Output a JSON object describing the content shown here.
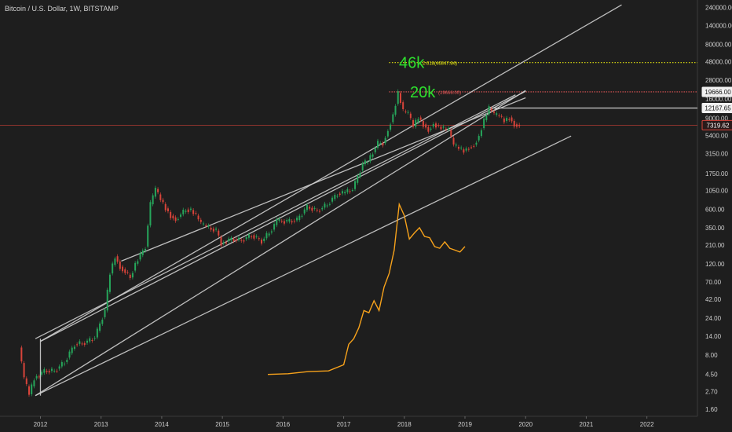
{
  "header": {
    "symbol_label": "Bitcoin / U.S. Dollar, 1W, BITSTAMP"
  },
  "colors": {
    "background": "#1e1e1e",
    "trendline": "#cfcfcf",
    "up_candle": "#26a65b",
    "down_candle": "#d9443a",
    "overlay_series": "#f7a21b",
    "current_price_line": "#d9443a",
    "level_46k": "#e5e510",
    "level_20k": "#e05555",
    "big_label": "#2ee02e",
    "axis_text": "#cfcfcf"
  },
  "chart_data": {
    "type": "line",
    "title": "Bitcoin / U.S. Dollar, 1W, BITSTAMP",
    "yscale": "log",
    "xlim": [
      "2011-05",
      "2022-11"
    ],
    "ylim": [
      1.3,
      300000
    ],
    "x_tick_labels": [
      "2012",
      "2013",
      "2014",
      "2015",
      "2016",
      "2017",
      "2018",
      "2019",
      "2020",
      "2021",
      "2022"
    ],
    "y_tick_labels": [
      "240000.00",
      "140000.00",
      "80000.00",
      "48000.00",
      "28000.00",
      "16000.00",
      "9000.00",
      "5400.00",
      "3150.00",
      "1750.00",
      "1050.00",
      "600.00",
      "350.00",
      "210.00",
      "120.00",
      "70.00",
      "42.00",
      "24.00",
      "14.00",
      "8.00",
      "4.50",
      "2.70",
      "1.60"
    ],
    "y_ticks": [
      240000,
      140000,
      80000,
      48000,
      28000,
      16000,
      9000,
      5400,
      3150,
      1750,
      1050,
      600,
      350,
      210,
      120,
      70,
      42,
      24,
      14,
      8,
      4.5,
      2.7,
      1.6
    ],
    "price_labels": [
      {
        "text": "19666.00",
        "value": 19666,
        "style": "white"
      },
      {
        "text": "12167.65",
        "value": 12167.65,
        "style": "white"
      },
      {
        "text": "7319.62",
        "value": 7319.62,
        "style": "red"
      }
    ],
    "horizontal_levels": [
      {
        "value": 46847.84,
        "style": "yellow-dotted"
      },
      {
        "value": 19666,
        "style": "red-dotted"
      },
      {
        "value": 12167.65,
        "style": "white"
      },
      {
        "value": 7319.62,
        "style": "red-thin"
      }
    ],
    "annotations": [
      {
        "big": "46k",
        "small": "2.618(46847.84)",
        "value": 46847.84
      },
      {
        "big": "20k",
        "small": "(19666.00)",
        "value": 19666
      }
    ],
    "price_series": [
      [
        "2011-09",
        10
      ],
      [
        "2011-10",
        4
      ],
      [
        "2011-11",
        2.5
      ],
      [
        "2011-12",
        4
      ],
      [
        "2012-02",
        5
      ],
      [
        "2012-04",
        5
      ],
      [
        "2012-06",
        6.5
      ],
      [
        "2012-08",
        11
      ],
      [
        "2012-10",
        11.5
      ],
      [
        "2012-12",
        13.5
      ],
      [
        "2013-02",
        30
      ],
      [
        "2013-03",
        90
      ],
      [
        "2013-04",
        150
      ],
      [
        "2013-05",
        110
      ],
      [
        "2013-07",
        80
      ],
      [
        "2013-08",
        120
      ],
      [
        "2013-10",
        200
      ],
      [
        "2013-11",
        700
      ],
      [
        "2013-12",
        1100
      ],
      [
        "2014-01",
        800
      ],
      [
        "2014-02",
        620
      ],
      [
        "2014-03",
        500
      ],
      [
        "2014-04",
        450
      ],
      [
        "2014-06",
        600
      ],
      [
        "2014-07",
        590
      ],
      [
        "2014-08",
        500
      ],
      [
        "2014-09",
        390
      ],
      [
        "2014-10",
        360
      ],
      [
        "2014-12",
        320
      ],
      [
        "2015-01",
        220
      ],
      [
        "2015-03",
        250
      ],
      [
        "2015-05",
        240
      ],
      [
        "2015-07",
        280
      ],
      [
        "2015-09",
        235
      ],
      [
        "2015-11",
        330
      ],
      [
        "2015-12",
        430
      ],
      [
        "2016-02",
        420
      ],
      [
        "2016-04",
        440
      ],
      [
        "2016-06",
        650
      ],
      [
        "2016-08",
        575
      ],
      [
        "2016-10",
        700
      ],
      [
        "2016-12",
        960
      ],
      [
        "2017-01",
        970
      ],
      [
        "2017-03",
        1100
      ],
      [
        "2017-05",
        2300
      ],
      [
        "2017-06",
        2500
      ],
      [
        "2017-08",
        4300
      ],
      [
        "2017-09",
        4300
      ],
      [
        "2017-10",
        6400
      ],
      [
        "2017-11",
        10000
      ],
      [
        "2017-12",
        19000
      ],
      [
        "2018-01",
        11000
      ],
      [
        "2018-02",
        10300
      ],
      [
        "2018-03",
        7000
      ],
      [
        "2018-04",
        9200
      ],
      [
        "2018-05",
        7500
      ],
      [
        "2018-06",
        6400
      ],
      [
        "2018-07",
        7700
      ],
      [
        "2018-08",
        7000
      ],
      [
        "2018-09",
        6600
      ],
      [
        "2018-10",
        6300
      ],
      [
        "2018-11",
        4000
      ],
      [
        "2018-12",
        3700
      ],
      [
        "2019-01",
        3450
      ],
      [
        "2019-02",
        3800
      ],
      [
        "2019-03",
        4100
      ],
      [
        "2019-04",
        5300
      ],
      [
        "2019-05",
        8500
      ],
      [
        "2019-06",
        12000
      ],
      [
        "2019-07",
        10000
      ],
      [
        "2019-08",
        9600
      ],
      [
        "2019-09",
        8300
      ],
      [
        "2019-10",
        9200
      ],
      [
        "2019-11",
        7500
      ],
      [
        "2019-12",
        7300
      ]
    ],
    "overlay_series": [
      [
        "2015-10",
        4.5
      ],
      [
        "2016-02",
        4.6
      ],
      [
        "2016-06",
        4.9
      ],
      [
        "2016-10",
        5.0
      ],
      [
        "2017-01",
        6.0
      ],
      [
        "2017-02",
        11
      ],
      [
        "2017-03",
        13
      ],
      [
        "2017-04",
        18
      ],
      [
        "2017-05",
        30
      ],
      [
        "2017-06",
        28
      ],
      [
        "2017-07",
        40
      ],
      [
        "2017-08",
        30
      ],
      [
        "2017-09",
        60
      ],
      [
        "2017-10",
        90
      ],
      [
        "2017-11",
        180
      ],
      [
        "2017-12",
        700
      ],
      [
        "2018-01",
        500
      ],
      [
        "2018-02",
        250
      ],
      [
        "2018-03",
        300
      ],
      [
        "2018-04",
        350
      ],
      [
        "2018-05",
        270
      ],
      [
        "2018-06",
        260
      ],
      [
        "2018-07",
        200
      ],
      [
        "2018-08",
        190
      ],
      [
        "2018-09",
        230
      ],
      [
        "2018-10",
        190
      ],
      [
        "2018-11",
        180
      ],
      [
        "2018-12",
        170
      ],
      [
        "2019-01",
        200
      ]
    ],
    "trendlines": [
      {
        "from": [
          "2012-01",
          12
        ],
        "to": [
          "2021-08",
          260000
        ]
      },
      {
        "from": [
          "2012-01",
          12
        ],
        "to": [
          "2020-01",
          20000
        ]
      },
      {
        "from": [
          "2011-12",
          13
        ],
        "to": [
          "2019-11",
          18000
        ]
      },
      {
        "from": [
          "2011-12",
          2.4
        ],
        "to": [
          "2020-01",
          20500
        ]
      },
      {
        "from": [
          "2011-12",
          2.4
        ],
        "to": [
          "2020-10",
          5300
        ]
      },
      {
        "from": [
          "2013-05",
          130
        ],
        "to": [
          "2020-01",
          16500
        ]
      },
      {
        "from": [
          "2012-01",
          13
        ],
        "to": [
          "2012-01",
          2.4
        ]
      }
    ]
  }
}
